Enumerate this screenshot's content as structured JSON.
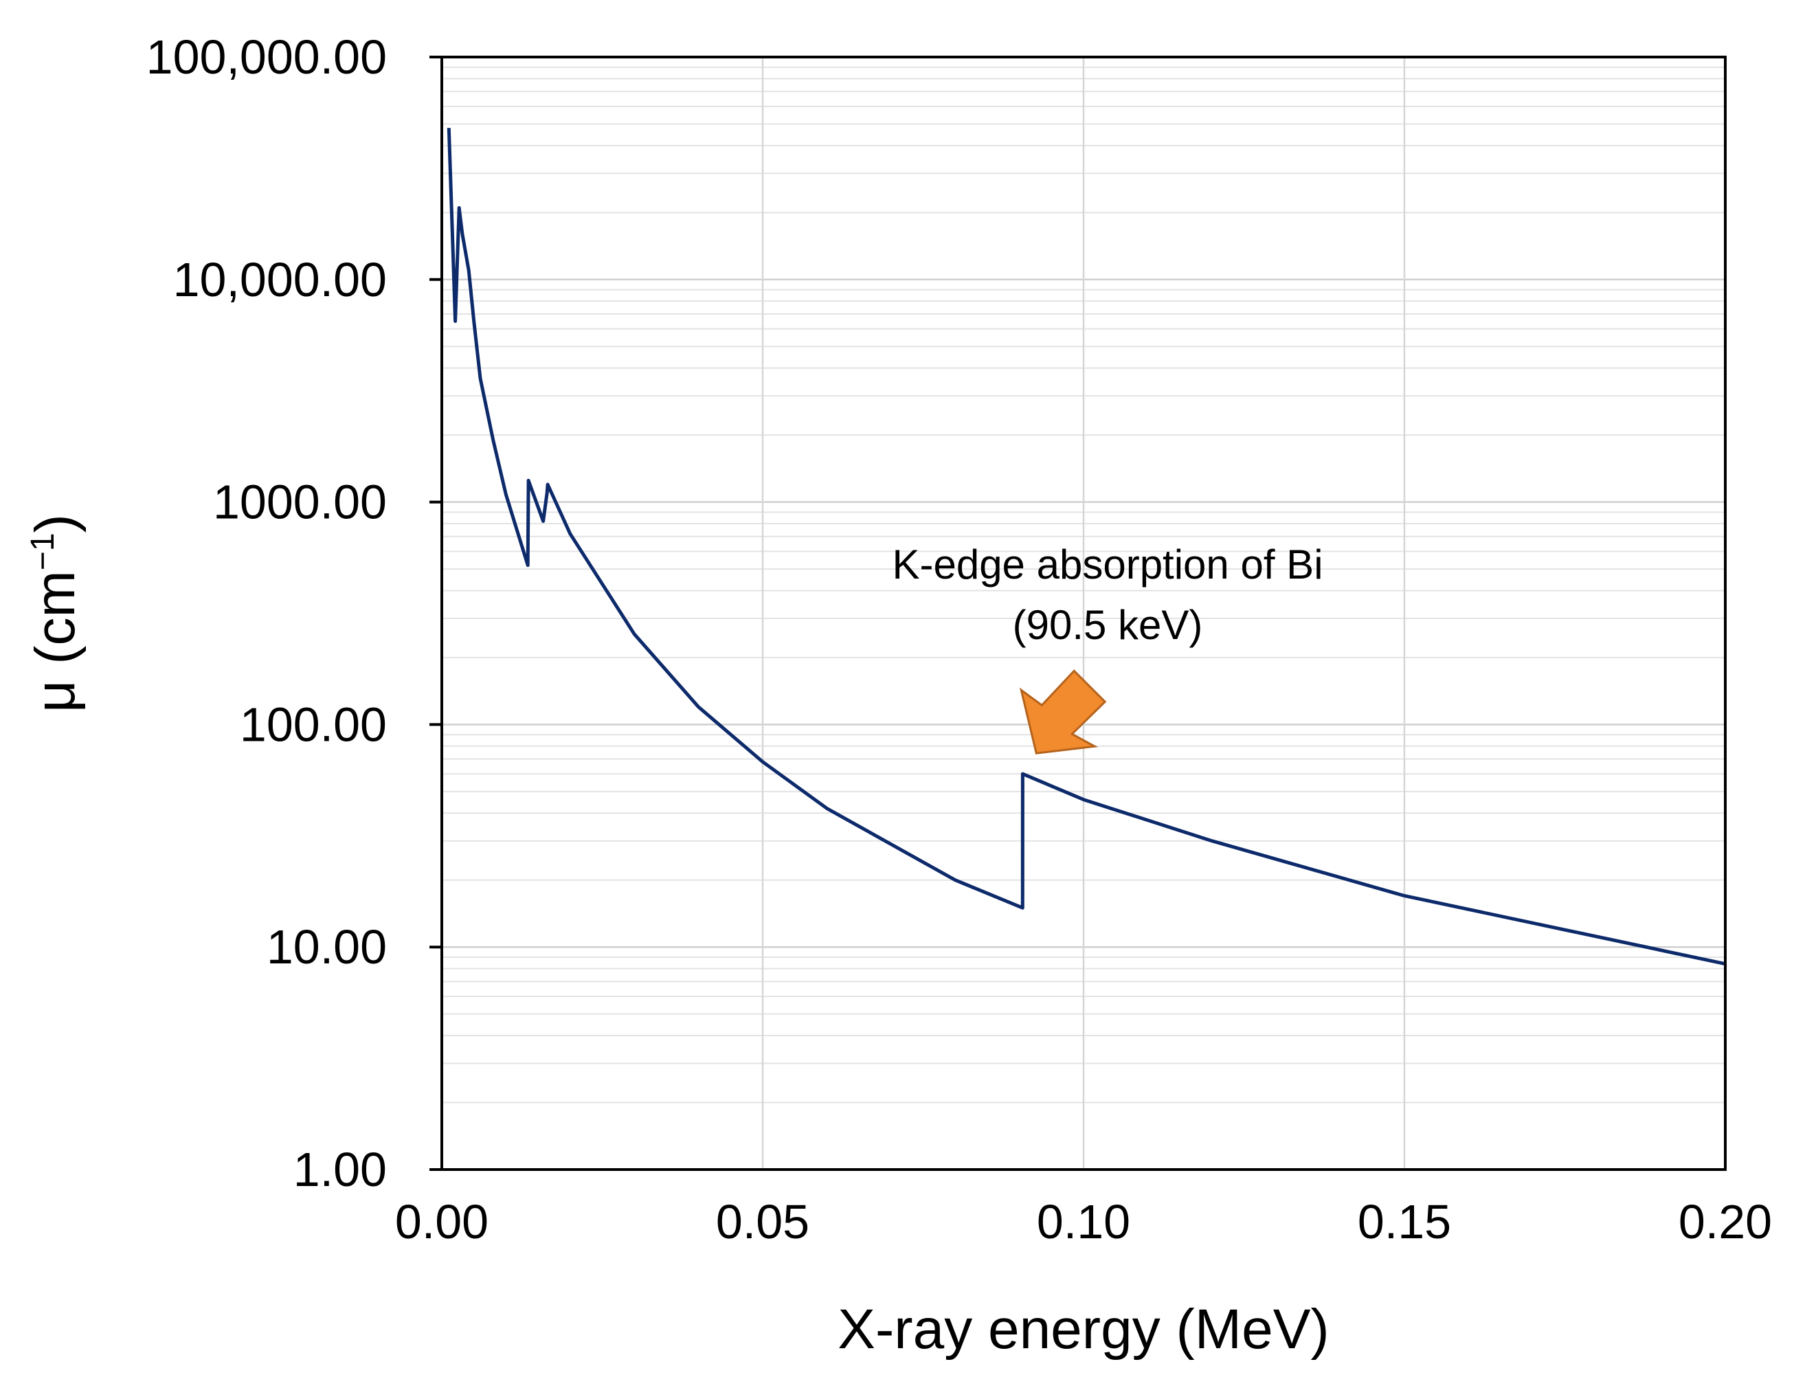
{
  "chart_data": {
    "type": "line",
    "title": "",
    "xlabel": "X-ray energy (MeV)",
    "ylabel": {
      "base": "μ (cm",
      "sup": "−1",
      "close": ")"
    },
    "x_scale": "linear",
    "y_scale": "log",
    "xlim": [
      0,
      0.2
    ],
    "ylim": [
      1,
      100000
    ],
    "x_ticks": [
      0,
      0.05,
      0.1,
      0.15,
      0.2
    ],
    "x_tick_labels": [
      "0.00",
      "0.05",
      "0.10",
      "0.15",
      "0.20"
    ],
    "y_ticks": [
      1,
      10,
      100,
      1000,
      10000,
      100000
    ],
    "y_tick_labels": [
      "1.00",
      "10.00",
      "100.00",
      "1000.00",
      "10,000.00",
      "100,000.00"
    ],
    "grid": true,
    "series": [
      {
        "name": "Bi",
        "color": "#0d2a6b",
        "x": [
          0.0011,
          0.0021,
          0.0027,
          0.0032,
          0.0042,
          0.005,
          0.006,
          0.008,
          0.01,
          0.0134,
          0.0135,
          0.0158,
          0.0164,
          0.0165,
          0.02,
          0.03,
          0.04,
          0.05,
          0.06,
          0.08,
          0.0905,
          0.09051,
          0.1,
          0.12,
          0.15,
          0.2
        ],
        "y": [
          48000,
          6500,
          21000,
          16000,
          11000,
          6500,
          3600,
          1900,
          1080,
          520,
          1250,
          820,
          1100,
          1200,
          720,
          255,
          120,
          68,
          42,
          20,
          15,
          60,
          46,
          30,
          17,
          8.4
        ]
      }
    ],
    "annotations": [
      {
        "text_lines": [
          "K-edge absorption of Bi",
          "(90.5 keV)"
        ],
        "target_x": 0.0905,
        "target_y": 60,
        "arrow_color": "#f28a2e"
      }
    ]
  }
}
